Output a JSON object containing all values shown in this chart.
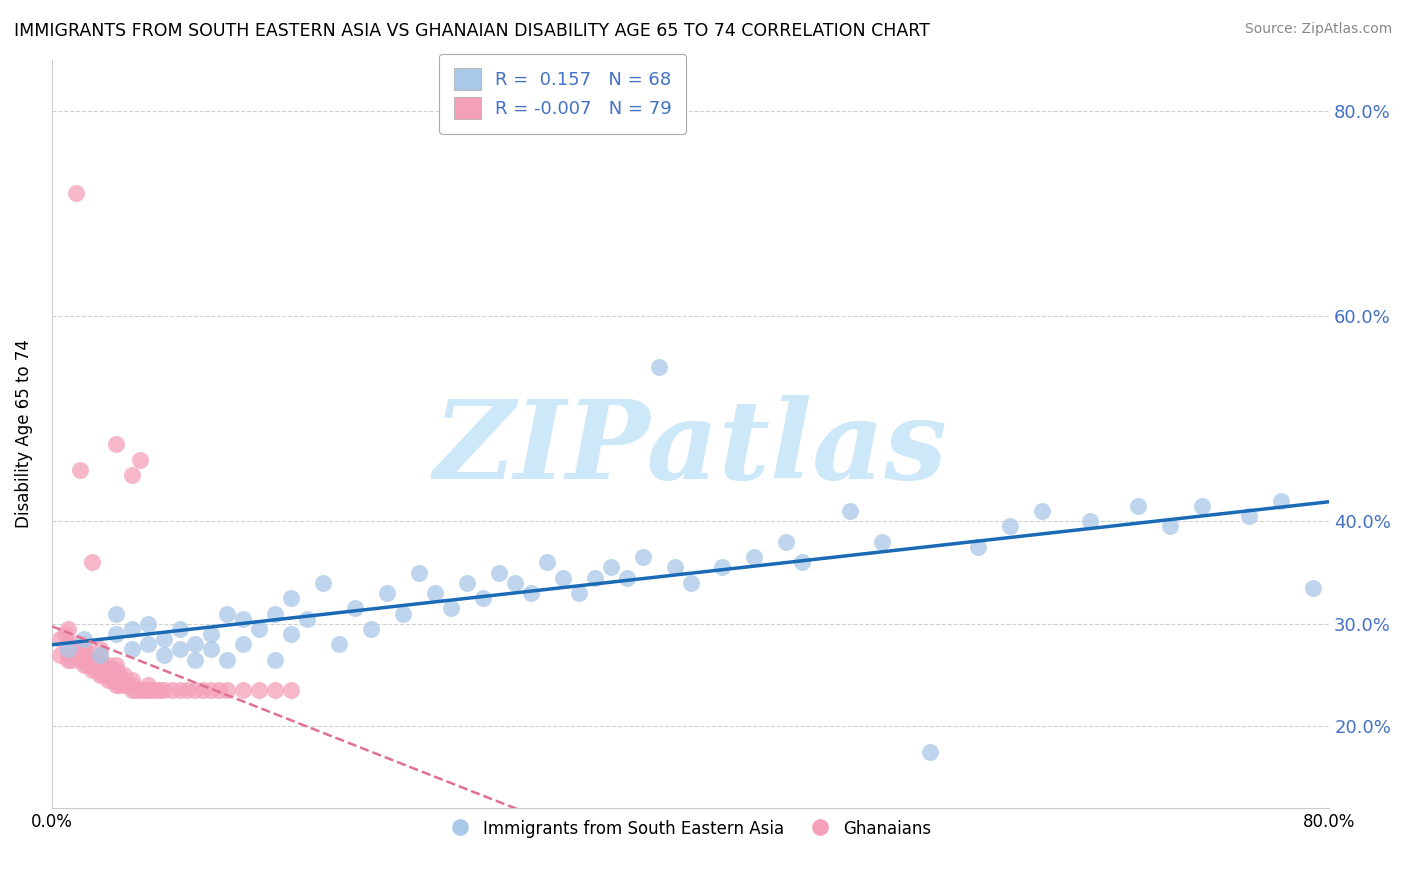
{
  "title": "IMMIGRANTS FROM SOUTH EASTERN ASIA VS GHANAIAN DISABILITY AGE 65 TO 74 CORRELATION CHART",
  "source": "Source: ZipAtlas.com",
  "ylabel": "Disability Age 65 to 74",
  "x_range": [
    0.0,
    0.8
  ],
  "y_range": [
    0.12,
    0.85
  ],
  "blue_R": 0.157,
  "blue_N": 68,
  "pink_R": -0.007,
  "pink_N": 79,
  "legend_label_blue": "Immigrants from South Eastern Asia",
  "legend_label_pink": "Ghanaians",
  "blue_color": "#aac8e8",
  "pink_color": "#f4a0b8",
  "blue_line_color": "#1a6ab5",
  "pink_line_color": "#e07090",
  "background_color": "#ffffff",
  "watermark_text": "ZIPatlas",
  "watermark_color": "#cde8f8",
  "y_tick_positions": [
    0.2,
    0.3,
    0.4,
    0.6,
    0.8
  ],
  "y_tick_labels": [
    "20.0%",
    "30.0%",
    "40.0%",
    "60.0%",
    "80.0%"
  ],
  "blue_scatter_x": [
    0.01,
    0.02,
    0.03,
    0.04,
    0.04,
    0.05,
    0.05,
    0.06,
    0.06,
    0.07,
    0.07,
    0.08,
    0.08,
    0.09,
    0.09,
    0.1,
    0.1,
    0.11,
    0.11,
    0.12,
    0.12,
    0.13,
    0.14,
    0.14,
    0.15,
    0.15,
    0.16,
    0.17,
    0.18,
    0.19,
    0.2,
    0.21,
    0.22,
    0.23,
    0.24,
    0.25,
    0.26,
    0.27,
    0.28,
    0.29,
    0.3,
    0.31,
    0.32,
    0.33,
    0.34,
    0.35,
    0.36,
    0.37,
    0.38,
    0.39,
    0.4,
    0.42,
    0.44,
    0.46,
    0.47,
    0.5,
    0.52,
    0.55,
    0.58,
    0.6,
    0.62,
    0.65,
    0.68,
    0.7,
    0.72,
    0.75,
    0.77,
    0.79
  ],
  "blue_scatter_y": [
    0.275,
    0.285,
    0.27,
    0.29,
    0.31,
    0.275,
    0.295,
    0.28,
    0.3,
    0.27,
    0.285,
    0.275,
    0.295,
    0.28,
    0.265,
    0.29,
    0.275,
    0.31,
    0.265,
    0.305,
    0.28,
    0.295,
    0.265,
    0.31,
    0.29,
    0.325,
    0.305,
    0.34,
    0.28,
    0.315,
    0.295,
    0.33,
    0.31,
    0.35,
    0.33,
    0.315,
    0.34,
    0.325,
    0.35,
    0.34,
    0.33,
    0.36,
    0.345,
    0.33,
    0.345,
    0.355,
    0.345,
    0.365,
    0.55,
    0.355,
    0.34,
    0.355,
    0.365,
    0.38,
    0.36,
    0.41,
    0.38,
    0.175,
    0.375,
    0.395,
    0.41,
    0.4,
    0.415,
    0.395,
    0.415,
    0.405,
    0.42,
    0.335
  ],
  "pink_scatter_x": [
    0.005,
    0.005,
    0.008,
    0.01,
    0.01,
    0.01,
    0.01,
    0.012,
    0.015,
    0.015,
    0.015,
    0.015,
    0.018,
    0.018,
    0.02,
    0.02,
    0.02,
    0.02,
    0.02,
    0.022,
    0.022,
    0.025,
    0.025,
    0.025,
    0.025,
    0.028,
    0.028,
    0.03,
    0.03,
    0.03,
    0.03,
    0.03,
    0.03,
    0.032,
    0.033,
    0.035,
    0.035,
    0.035,
    0.035,
    0.038,
    0.038,
    0.04,
    0.04,
    0.04,
    0.04,
    0.04,
    0.04,
    0.042,
    0.042,
    0.045,
    0.045,
    0.045,
    0.048,
    0.05,
    0.05,
    0.05,
    0.05,
    0.052,
    0.055,
    0.055,
    0.058,
    0.06,
    0.06,
    0.062,
    0.065,
    0.068,
    0.07,
    0.075,
    0.08,
    0.085,
    0.09,
    0.095,
    0.1,
    0.105,
    0.11,
    0.12,
    0.13,
    0.14,
    0.15
  ],
  "pink_scatter_y": [
    0.27,
    0.285,
    0.29,
    0.265,
    0.27,
    0.28,
    0.295,
    0.265,
    0.27,
    0.275,
    0.72,
    0.28,
    0.265,
    0.45,
    0.26,
    0.265,
    0.27,
    0.275,
    0.28,
    0.26,
    0.27,
    0.255,
    0.26,
    0.265,
    0.36,
    0.255,
    0.26,
    0.25,
    0.255,
    0.26,
    0.265,
    0.27,
    0.275,
    0.25,
    0.255,
    0.245,
    0.25,
    0.255,
    0.26,
    0.245,
    0.255,
    0.24,
    0.245,
    0.25,
    0.255,
    0.26,
    0.475,
    0.24,
    0.25,
    0.24,
    0.245,
    0.25,
    0.24,
    0.235,
    0.24,
    0.245,
    0.445,
    0.235,
    0.235,
    0.46,
    0.235,
    0.235,
    0.24,
    0.235,
    0.235,
    0.235,
    0.235,
    0.235,
    0.235,
    0.235,
    0.235,
    0.235,
    0.235,
    0.235,
    0.235,
    0.235,
    0.235,
    0.235,
    0.235
  ]
}
